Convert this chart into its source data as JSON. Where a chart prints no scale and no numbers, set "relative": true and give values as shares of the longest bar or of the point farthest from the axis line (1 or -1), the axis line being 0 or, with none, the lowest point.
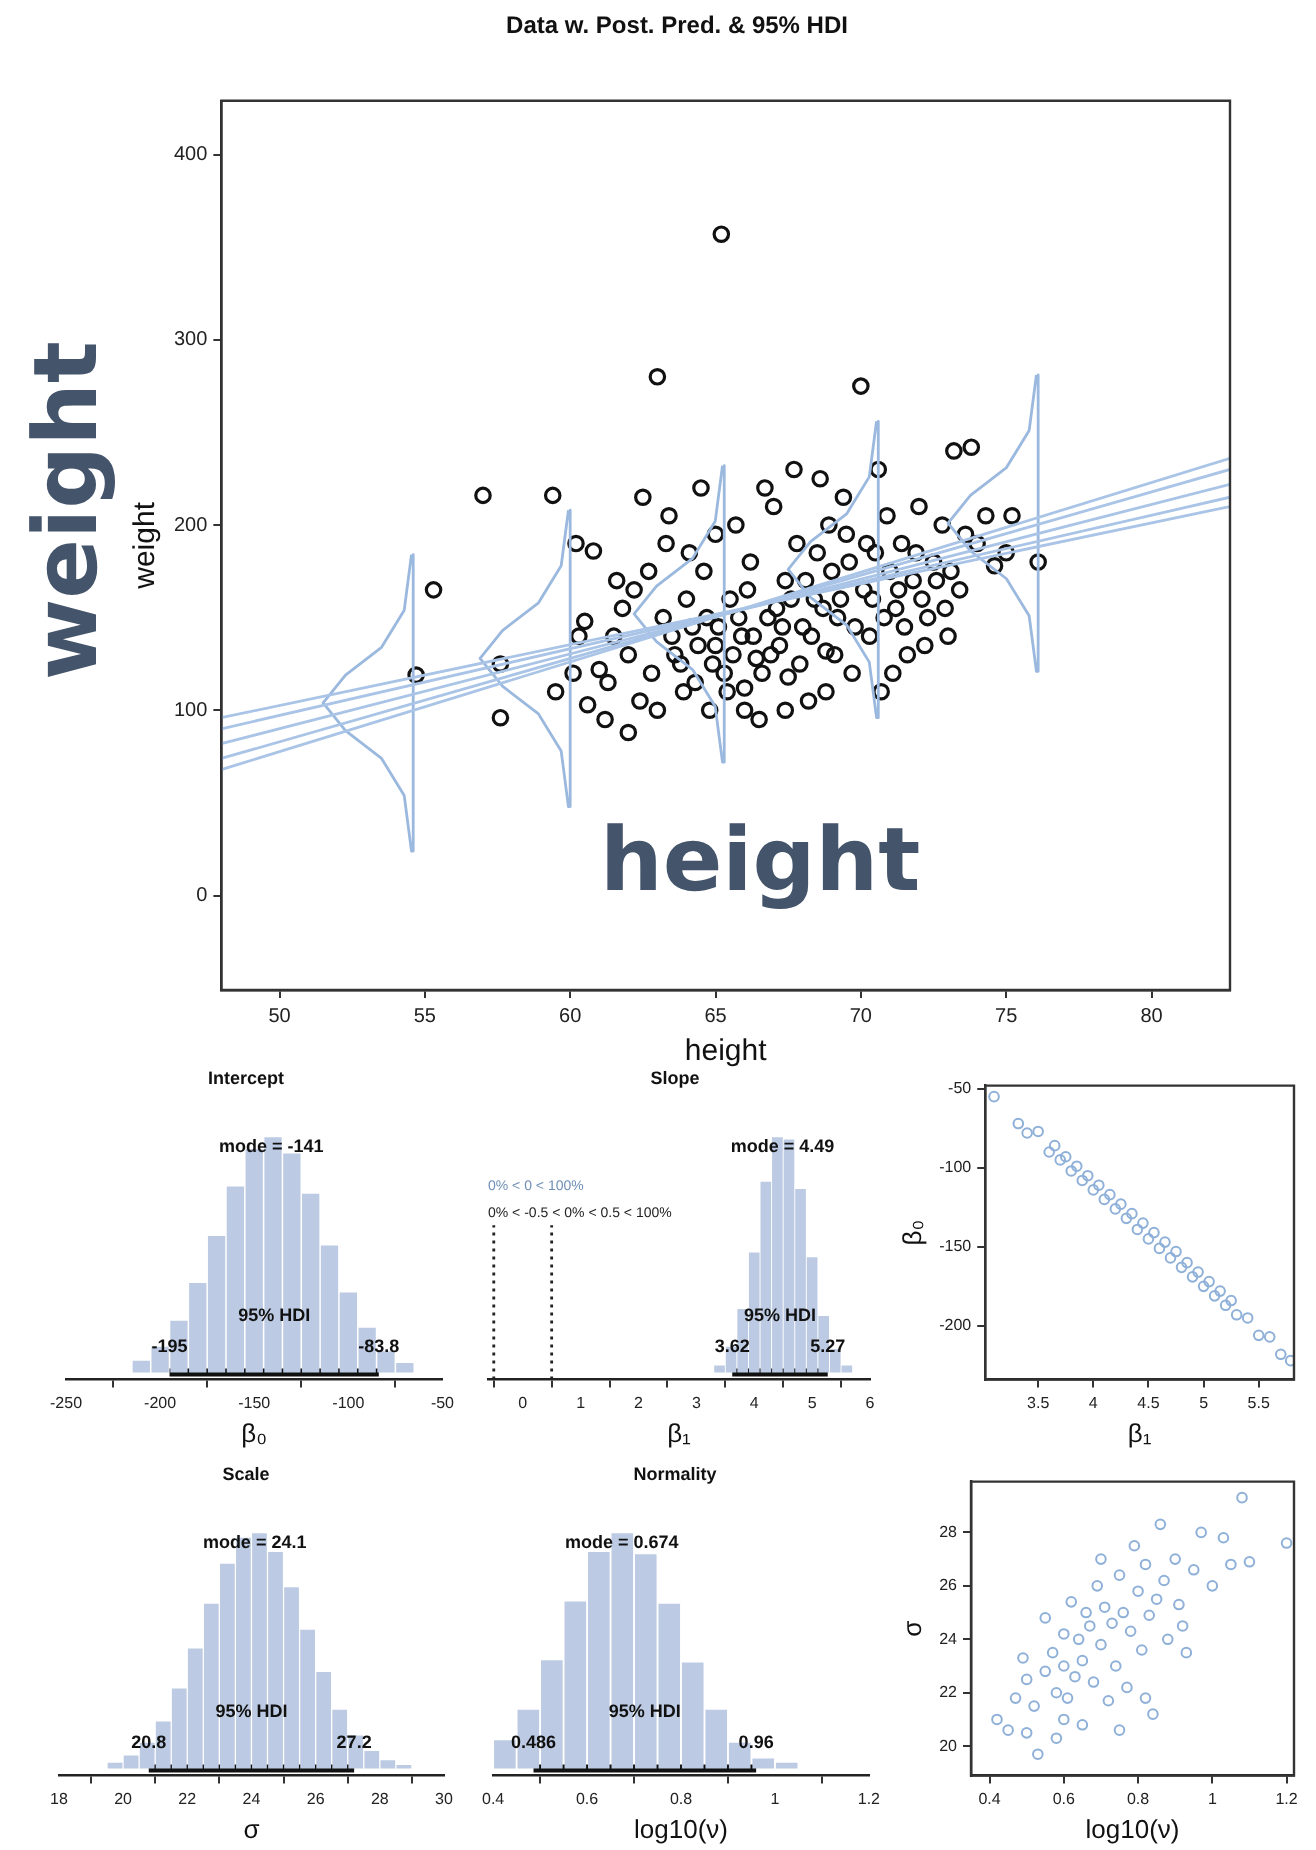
{
  "chart_data": [
    {
      "type": "scatter",
      "title": "Data w. Post. Pred. & 95% HDI",
      "xlabel": "height",
      "ylabel": "weight",
      "xlim": [
        48,
        82.7
      ],
      "ylim": [
        -51,
        429
      ],
      "xticks": [
        50,
        55,
        60,
        65,
        70,
        75,
        80
      ],
      "yticks": [
        0,
        100,
        200,
        300,
        400
      ],
      "annotations": [
        "weight",
        "height"
      ],
      "series": [
        {
          "type": "line",
          "color": "#a9c4e6",
          "x": [
            48,
            82.7
          ],
          "values": [
            74,
            230
          ]
        },
        {
          "type": "line",
          "color": "#a9c4e6",
          "x": [
            48,
            82.7
          ],
          "values": [
            82,
            222
          ]
        },
        {
          "type": "line",
          "color": "#a9c4e6",
          "x": [
            48,
            82.7
          ],
          "values": [
            90,
            215
          ]
        },
        {
          "type": "line",
          "color": "#a9c4e6",
          "x": [
            48,
            82.7
          ],
          "values": [
            68,
            236
          ]
        },
        {
          "type": "line",
          "color": "#a9c4e6",
          "x": [
            48,
            82.7
          ],
          "values": [
            96,
            210
          ]
        },
        {
          "type": "line",
          "color": "#9bb8de",
          "x": [
            54.6,
            54.6,
            54.54,
            54.29,
            53.51,
            52.27,
            51.5,
            52.27,
            53.51,
            54.29,
            54.54
          ],
          "values": [
            184,
            24,
            24,
            54,
            74,
            89,
            104,
            119,
            134,
            154,
            184
          ]
        },
        {
          "type": "line",
          "color": "#9bb8de",
          "x": [
            60,
            60,
            59.94,
            59.69,
            58.91,
            57.67,
            56.9,
            57.67,
            58.91,
            59.69,
            59.94
          ],
          "values": [
            208,
            48,
            48,
            78,
            98,
            113,
            128,
            143,
            158,
            178,
            208
          ]
        },
        {
          "type": "line",
          "color": "#9bb8de",
          "x": [
            65.3,
            65.3,
            65.24,
            64.99,
            64.21,
            62.97,
            62.2,
            62.97,
            64.21,
            64.99,
            65.24
          ],
          "values": [
            232,
            72,
            72,
            102,
            122,
            137,
            152,
            167,
            182,
            202,
            232
          ]
        },
        {
          "type": "line",
          "color": "#9bb8de",
          "x": [
            70.6,
            70.6,
            70.54,
            70.29,
            69.51,
            68.27,
            67.5,
            68.27,
            69.51,
            70.29,
            70.54
          ],
          "values": [
            256,
            96,
            96,
            126,
            146,
            161,
            176,
            191,
            206,
            226,
            256
          ]
        },
        {
          "type": "line",
          "color": "#9bb8de",
          "x": [
            76.1,
            76.1,
            76.04,
            75.79,
            75.01,
            73.77,
            73,
            73.77,
            75.01,
            75.79,
            76.04
          ],
          "values": [
            281,
            121,
            121,
            151,
            171,
            186,
            201,
            216,
            231,
            251,
            281
          ]
        },
        {
          "type": "scatter",
          "color": "#111111",
          "marker": "circle",
          "x": [
            54.7,
            55.3,
            57.0,
            59.4,
            57.6,
            57.6,
            59.5,
            60.2,
            60.8,
            61.0,
            60.5,
            60.6,
            61.2,
            61.5,
            62.0,
            62.2,
            62.5,
            63.0,
            63.3,
            62.8,
            63.6,
            63.9,
            64.2,
            64.5,
            64.6,
            64.8,
            65.0,
            65.2,
            65.3,
            65.5,
            65.7,
            65.9,
            66.0,
            66.2,
            66.4,
            66.5,
            66.8,
            67.0,
            67.2,
            67.4,
            67.5,
            67.8,
            68.0,
            68.2,
            68.4,
            68.6,
            68.8,
            69.0,
            69.2,
            69.5,
            69.7,
            70.0,
            70.1,
            70.3,
            70.5,
            70.7,
            70.9,
            71.2,
            71.4,
            71.6,
            71.8,
            72.0,
            72.3,
            72.5,
            72.8,
            73.0,
            73.2,
            73.4,
            73.8,
            74.0,
            74.3,
            74.6,
            75.2,
            75.0,
            76.1,
            63.2,
            63.5,
            63.8,
            64.0,
            64.3,
            64.4,
            64.7,
            64.9,
            65.1,
            65.4,
            65.6,
            65.8,
            66.1,
            66.3,
            66.6,
            66.9,
            67.1,
            67.3,
            67.6,
            67.9,
            68.1,
            68.3,
            68.5,
            68.7,
            68.9,
            69.1,
            69.3,
            69.6,
            69.8,
            70.2,
            70.4,
            70.8,
            71.0,
            71.3,
            71.5,
            71.9,
            72.1,
            72.6,
            72.9,
            73.6,
            62.0,
            62.4,
            61.8,
            61.3,
            63.0,
            63.4,
            64.1,
            65.0,
            66.7,
            67.7,
            69.4,
            70.6,
            60.1,
            60.3,
            61.6,
            62.7,
            66.0,
            67.4,
            68.8,
            71.1,
            72.2,
            73.1
          ],
          "values": [
            119,
            165,
            216,
            216,
            125,
            96,
            110,
            190,
            186,
            122,
            148,
            103,
            95,
            140,
            88,
            165,
            215,
            280,
            190,
            120,
            130,
            110,
            145,
            220,
            175,
            100,
            135,
            357,
            120,
            160,
            200,
            140,
            112,
            180,
            128,
            95,
            150,
            210,
            135,
            170,
            118,
            190,
            145,
            105,
            160,
            225,
            132,
            175,
            150,
            195,
            120,
            275,
            165,
            140,
            185,
            110,
            205,
            155,
            190,
            130,
            170,
            210,
            150,
            180,
            200,
            140,
            240,
            165,
            242,
            190,
            205,
            178,
            205,
            185,
            180,
            150,
            140,
            125,
            160,
            115,
            135,
            150,
            125,
            145,
            110,
            130,
            150,
            165,
            140,
            120,
            130,
            155,
            145,
            160,
            125,
            170,
            140,
            185,
            155,
            200,
            130,
            160,
            180,
            145,
            190,
            160,
            150,
            175,
            165,
            145,
            185,
            160,
            170,
            155,
            195,
            130,
            105,
            155,
            115,
            100,
            205,
            185,
            195,
            220,
            230,
            215,
            230,
            120,
            140,
            170,
            175,
            100,
            100,
            110,
            120,
            135,
            175
          ]
        }
      ]
    },
    {
      "type": "bar",
      "title": "Intercept",
      "xlabel": "β₀",
      "relative": true,
      "color": "#bccbe3",
      "xlim": [
        -250,
        -50
      ],
      "xticks": [
        -250,
        -200,
        -150,
        -100,
        -50
      ],
      "x": [
        -210,
        -200,
        -190,
        -180,
        -170,
        -160,
        -150,
        -140,
        -130,
        -120,
        -110,
        -100,
        -90,
        -80,
        -70
      ],
      "values": [
        0.05,
        0.11,
        0.22,
        0.38,
        0.58,
        0.79,
        0.95,
        1,
        0.93,
        0.76,
        0.54,
        0.34,
        0.19,
        0.09,
        0.04
      ],
      "series": [
        {
          "type": "line",
          "color": "#111111",
          "x": [
            -195,
            -83.8
          ],
          "values": [
            0,
            0
          ]
        }
      ],
      "annotations": [
        {
          "text": "mode = -141",
          "x": -141,
          "y": 0.92
        },
        {
          "text": "95% HDI",
          "x": -139.4,
          "y": 0.2
        },
        {
          "text": "-195",
          "x": -195,
          "y": 0.07
        },
        {
          "text": "-83.8",
          "x": -83.8,
          "y": 0.07
        }
      ]
    },
    {
      "type": "bar",
      "title": "Slope",
      "xlabel": "β₁",
      "relative": true,
      "color": "#bccbe3",
      "xlim": [
        -0.6,
        6
      ],
      "xticks": [
        0,
        1,
        2,
        3,
        4,
        5,
        6
      ],
      "x": [
        3.4,
        3.6,
        3.8,
        4.0,
        4.2,
        4.4,
        4.6,
        4.8,
        5.0,
        5.2,
        5.4,
        5.6
      ],
      "values": [
        0.03,
        0.11,
        0.27,
        0.51,
        0.81,
        1,
        0.99,
        0.78,
        0.49,
        0.24,
        0.1,
        0.03
      ],
      "series": [
        {
          "type": "line",
          "color": "#111111",
          "x": [
            3.62,
            5.27
          ],
          "values": [
            0,
            0
          ]
        }
      ],
      "ref_lines": [
        {
          "axis": "x",
          "value": -0.5,
          "line_style": "dotted"
        },
        {
          "axis": "x",
          "value": 0.5,
          "line_style": "dotted"
        }
      ],
      "annotations": [
        {
          "text": "mode = 4.49",
          "x": 4.49,
          "y": 0.92
        },
        {
          "text": "95% HDI",
          "x": 4.445,
          "y": 0.2
        },
        {
          "text": "3.62",
          "x": 3.62,
          "y": 0.07
        },
        {
          "text": "5.27",
          "x": 5.27,
          "y": 0.07
        },
        "0% < 0 < 100%",
        "0% < -0.5 < 0% < 0.5 < 100%"
      ]
    },
    {
      "type": "scatter",
      "xlabel": "β₁",
      "ylabel": "β₀",
      "xlim": [
        3.02,
        5.82
      ],
      "ylim": [
        -234,
        -48
      ],
      "xticks": [
        3.5,
        4.0,
        4.5,
        5.0,
        5.5
      ],
      "yticks": [
        -50,
        -100,
        -150,
        -200
      ],
      "marker": "circle",
      "series": [
        {
          "type": "scatter",
          "color": "#8fb0d8",
          "x": [
            3.1,
            3.32,
            3.4,
            3.5,
            3.6,
            3.65,
            3.7,
            3.75,
            3.8,
            3.85,
            3.9,
            3.95,
            4.0,
            4.05,
            4.1,
            4.15,
            4.2,
            4.25,
            4.3,
            4.35,
            4.4,
            4.45,
            4.5,
            4.55,
            4.6,
            4.65,
            4.7,
            4.75,
            4.8,
            4.85,
            4.9,
            4.95,
            5.0,
            5.05,
            5.1,
            5.15,
            5.2,
            5.25,
            5.3,
            5.4,
            5.5,
            5.6,
            5.7,
            5.79
          ],
          "values": [
            -55,
            -72,
            -78,
            -77,
            -90,
            -86,
            -95,
            -93,
            -102,
            -99,
            -108,
            -105,
            -114,
            -111,
            -120,
            -117,
            -126,
            -123,
            -132,
            -129,
            -139,
            -135,
            -145,
            -141,
            -151,
            -147,
            -157,
            -153,
            -163,
            -160,
            -169,
            -166,
            -175,
            -172,
            -181,
            -178,
            -187,
            -184,
            -193,
            -195,
            -206,
            -207,
            -218,
            -222
          ]
        }
      ]
    },
    {
      "type": "bar",
      "title": "Scale",
      "xlabel": "σ",
      "relative": true,
      "color": "#bccbe3",
      "xlim": [
        18,
        30
      ],
      "xticks": [
        18,
        20,
        22,
        24,
        26,
        28,
        30
      ],
      "x": [
        19.75,
        20.25,
        20.75,
        21.25,
        21.75,
        22.25,
        22.75,
        23.25,
        23.75,
        24.25,
        24.75,
        25.25,
        25.75,
        26.25,
        26.75,
        27.25,
        27.75,
        28.25,
        28.75
      ],
      "values": [
        0.025,
        0.055,
        0.11,
        0.2,
        0.34,
        0.51,
        0.7,
        0.87,
        0.98,
        1,
        0.92,
        0.77,
        0.59,
        0.41,
        0.25,
        0.14,
        0.074,
        0.035,
        0.015
      ],
      "series": [
        {
          "type": "line",
          "color": "#111111",
          "x": [
            20.8,
            27.2
          ],
          "values": [
            0,
            0
          ]
        }
      ],
      "annotations": [
        {
          "text": "mode = 24.1",
          "x": 24.1,
          "y": 0.92
        },
        {
          "text": "95% HDI",
          "x": 24,
          "y": 0.2
        },
        {
          "text": "20.8",
          "x": 20.8,
          "y": 0.07
        },
        {
          "text": "27.2",
          "x": 27.2,
          "y": 0.07
        }
      ]
    },
    {
      "type": "bar",
      "title": "Normality",
      "xlabel": "log10(ν)",
      "relative": true,
      "color": "#bccbe3",
      "xlim": [
        0.4,
        1.2
      ],
      "xticks": [
        0.4,
        0.6,
        0.8,
        1.0,
        1.2
      ],
      "x": [
        0.425,
        0.475,
        0.525,
        0.575,
        0.625,
        0.675,
        0.725,
        0.775,
        0.825,
        0.875,
        0.925,
        0.975,
        1.025
      ],
      "values": [
        0.12,
        0.25,
        0.46,
        0.71,
        0.92,
        1,
        0.91,
        0.7,
        0.45,
        0.25,
        0.11,
        0.043,
        0.025
      ],
      "series": [
        {
          "type": "line",
          "color": "#111111",
          "x": [
            0.486,
            0.96
          ],
          "values": [
            0,
            0
          ]
        }
      ],
      "annotations": [
        {
          "text": "mode = 0.674",
          "x": 0.674,
          "y": 0.92
        },
        {
          "text": "95% HDI",
          "x": 0.723,
          "y": 0.2
        },
        {
          "text": "0.486",
          "x": 0.486,
          "y": 0.07
        },
        {
          "text": "0.96",
          "x": 0.96,
          "y": 0.07
        }
      ]
    },
    {
      "type": "scatter",
      "xlabel": "log10(ν)",
      "ylabel": "σ",
      "xlim": [
        0.35,
        1.22
      ],
      "ylim": [
        18.9,
        29.9
      ],
      "xticks": [
        0.4,
        0.6,
        0.8,
        1.0,
        1.2
      ],
      "yticks": [
        20,
        22,
        24,
        26,
        28
      ],
      "marker": "circle",
      "series": [
        {
          "type": "scatter",
          "color": "#8fb0d8",
          "x": [
            0.42,
            0.45,
            0.47,
            0.49,
            0.5,
            0.52,
            0.53,
            0.55,
            0.55,
            0.57,
            0.58,
            0.58,
            0.6,
            0.6,
            0.61,
            0.62,
            0.63,
            0.64,
            0.65,
            0.65,
            0.66,
            0.67,
            0.68,
            0.69,
            0.7,
            0.71,
            0.72,
            0.73,
            0.74,
            0.75,
            0.76,
            0.77,
            0.78,
            0.79,
            0.8,
            0.81,
            0.82,
            0.83,
            0.84,
            0.85,
            0.86,
            0.87,
            0.88,
            0.9,
            0.91,
            0.93,
            0.95,
            0.97,
            1.0,
            1.03,
            1.05,
            1.08,
            1.1,
            1.2,
            0.5,
            0.6,
            0.7,
            0.82,
            0.92,
            0.75
          ],
          "values": [
            21.0,
            20.6,
            21.8,
            23.3,
            22.5,
            21.5,
            19.7,
            22.8,
            24.8,
            23.5,
            22.0,
            20.3,
            24.2,
            23.0,
            21.8,
            25.4,
            22.6,
            24.0,
            23.2,
            20.8,
            25.0,
            24.5,
            22.4,
            26.0,
            23.8,
            25.2,
            21.7,
            24.6,
            23.0,
            26.4,
            25.0,
            22.2,
            24.3,
            27.5,
            25.8,
            23.6,
            26.8,
            24.9,
            21.2,
            25.5,
            28.3,
            26.2,
            24.0,
            27.0,
            25.3,
            23.5,
            26.6,
            28.0,
            26.0,
            27.8,
            26.8,
            29.3,
            26.9,
            27.6,
            20.5,
            21.0,
            27.0,
            21.8,
            24.5,
            20.6
          ]
        }
      ]
    }
  ]
}
